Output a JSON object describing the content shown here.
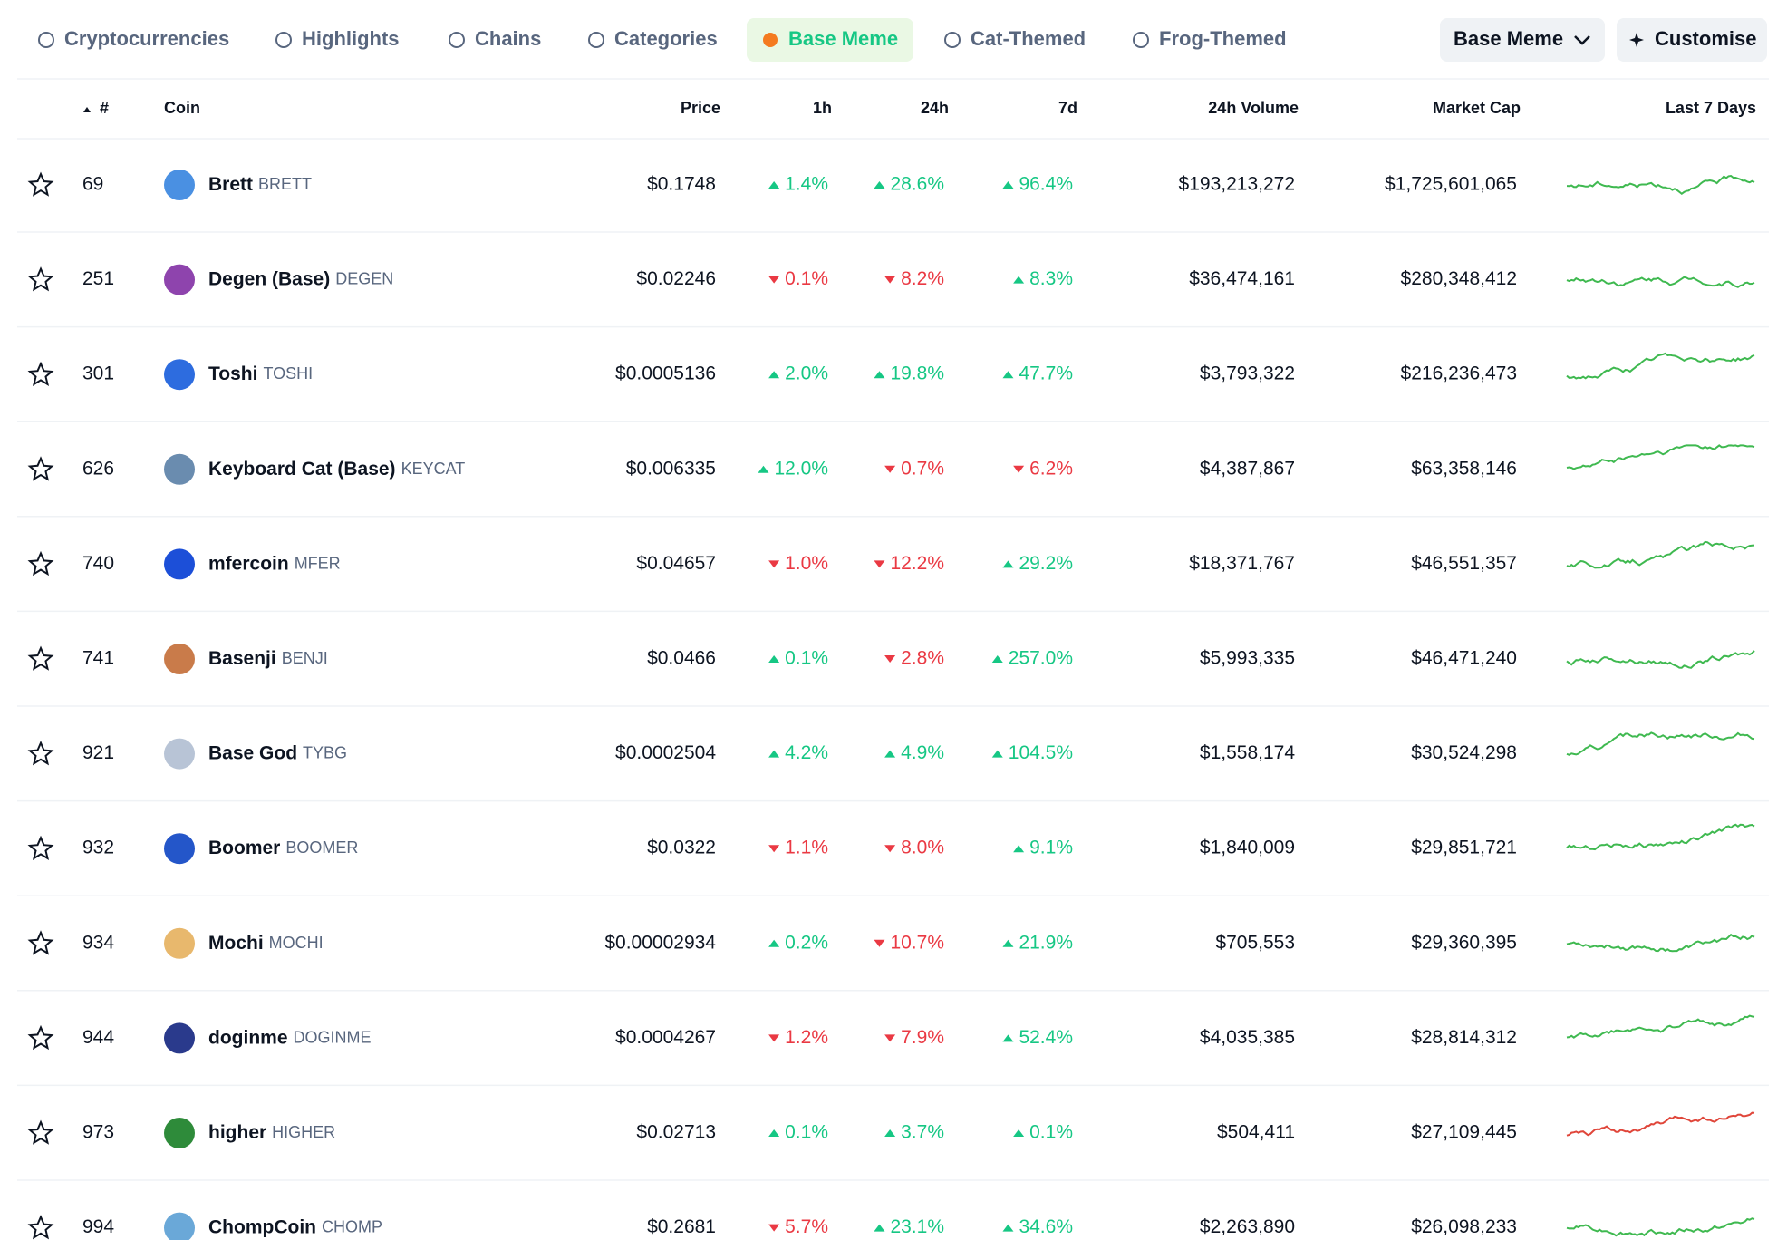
{
  "tabs": [
    {
      "label": "Cryptocurrencies",
      "active": false
    },
    {
      "label": "Highlights",
      "active": false
    },
    {
      "label": "Chains",
      "active": false
    },
    {
      "label": "Categories",
      "active": false
    },
    {
      "label": "Base Meme",
      "active": true
    },
    {
      "label": "Cat-Themed",
      "active": false
    },
    {
      "label": "Frog-Themed",
      "active": false
    }
  ],
  "dropdown": "Base Meme",
  "button": "Customise",
  "columns": [
    "#",
    "Coin",
    "Price",
    "1h",
    "24h",
    "7d",
    "24h Volume",
    "Market Cap",
    "Last 7 Days"
  ],
  "rows": [
    {
      "rank": 69,
      "name": "Brett",
      "symbol": "BRETT",
      "price": "$0.1748",
      "h1": {
        "text": "1.4%",
        "up": true
      },
      "h24": {
        "text": "28.6%",
        "up": true
      },
      "d7": {
        "text": "96.4%",
        "up": true
      },
      "volume": "$193,213,272",
      "mcap": "$1,725,601,065",
      "spark_color": "#3fb950"
    },
    {
      "rank": 251,
      "name": "Degen (Base)",
      "symbol": "DEGEN",
      "price": "$0.02246",
      "h1": {
        "text": "0.1%",
        "up": false
      },
      "h24": {
        "text": "8.2%",
        "up": false
      },
      "d7": {
        "text": "8.3%",
        "up": true
      },
      "volume": "$36,474,161",
      "mcap": "$280,348,412",
      "spark_color": "#3fb950"
    },
    {
      "rank": 301,
      "name": "Toshi",
      "symbol": "TOSHI",
      "price": "$0.0005136",
      "h1": {
        "text": "2.0%",
        "up": true
      },
      "h24": {
        "text": "19.8%",
        "up": true
      },
      "d7": {
        "text": "47.7%",
        "up": true
      },
      "volume": "$3,793,322",
      "mcap": "$216,236,473",
      "spark_color": "#3fb950"
    },
    {
      "rank": 626,
      "name": "Keyboard Cat (Base)",
      "symbol": "KEYCAT",
      "price": "$0.006335",
      "h1": {
        "text": "12.0%",
        "up": true
      },
      "h24": {
        "text": "0.7%",
        "up": false
      },
      "d7": {
        "text": "6.2%",
        "up": false
      },
      "volume": "$4,387,867",
      "mcap": "$63,358,146",
      "spark_color": "#3fb950"
    },
    {
      "rank": 740,
      "name": "mfercoin",
      "symbol": "MFER",
      "price": "$0.04657",
      "h1": {
        "text": "1.0%",
        "up": false
      },
      "h24": {
        "text": "12.2%",
        "up": false
      },
      "d7": {
        "text": "29.2%",
        "up": true
      },
      "volume": "$18,371,767",
      "mcap": "$46,551,357",
      "spark_color": "#3fb950"
    },
    {
      "rank": 741,
      "name": "Basenji",
      "symbol": "BENJI",
      "price": "$0.0466",
      "h1": {
        "text": "0.1%",
        "up": true
      },
      "h24": {
        "text": "2.8%",
        "up": false
      },
      "d7": {
        "text": "257.0%",
        "up": true
      },
      "volume": "$5,993,335",
      "mcap": "$46,471,240",
      "spark_color": "#3fb950"
    },
    {
      "rank": 921,
      "name": "Base God",
      "symbol": "TYBG",
      "price": "$0.0002504",
      "h1": {
        "text": "4.2%",
        "up": true
      },
      "h24": {
        "text": "4.9%",
        "up": true
      },
      "d7": {
        "text": "104.5%",
        "up": true
      },
      "volume": "$1,558,174",
      "mcap": "$30,524,298",
      "spark_color": "#3fb950"
    },
    {
      "rank": 932,
      "name": "Boomer",
      "symbol": "BOOMER",
      "price": "$0.0322",
      "h1": {
        "text": "1.1%",
        "up": false
      },
      "h24": {
        "text": "8.0%",
        "up": false
      },
      "d7": {
        "text": "9.1%",
        "up": true
      },
      "volume": "$1,840,009",
      "mcap": "$29,851,721",
      "spark_color": "#3fb950"
    },
    {
      "rank": 934,
      "name": "Mochi",
      "symbol": "MOCHI",
      "price": "$0.00002934",
      "h1": {
        "text": "0.2%",
        "up": true
      },
      "h24": {
        "text": "10.7%",
        "up": false
      },
      "d7": {
        "text": "21.9%",
        "up": true
      },
      "volume": "$705,553",
      "mcap": "$29,360,395",
      "spark_color": "#3fb950"
    },
    {
      "rank": 944,
      "name": "doginme",
      "symbol": "DOGINME",
      "price": "$0.0004267",
      "h1": {
        "text": "1.2%",
        "up": false
      },
      "h24": {
        "text": "7.9%",
        "up": false
      },
      "d7": {
        "text": "52.4%",
        "up": true
      },
      "volume": "$4,035,385",
      "mcap": "$28,814,312",
      "spark_color": "#3fb950"
    },
    {
      "rank": 973,
      "name": "higher",
      "symbol": "HIGHER",
      "price": "$0.02713",
      "h1": {
        "text": "0.1%",
        "up": true
      },
      "h24": {
        "text": "3.7%",
        "up": true
      },
      "d7": {
        "text": "0.1%",
        "up": true
      },
      "volume": "$504,411",
      "mcap": "$27,109,445",
      "spark_color": "#e0463a"
    },
    {
      "rank": 994,
      "name": "ChompCoin",
      "symbol": "CHOMP",
      "price": "$0.2681",
      "h1": {
        "text": "5.7%",
        "up": false
      },
      "h24": {
        "text": "23.1%",
        "up": true
      },
      "d7": {
        "text": "34.6%",
        "up": true
      },
      "volume": "$2,263,890",
      "mcap": "$26,098,233",
      "spark_color": "#3fb950"
    }
  ]
}
